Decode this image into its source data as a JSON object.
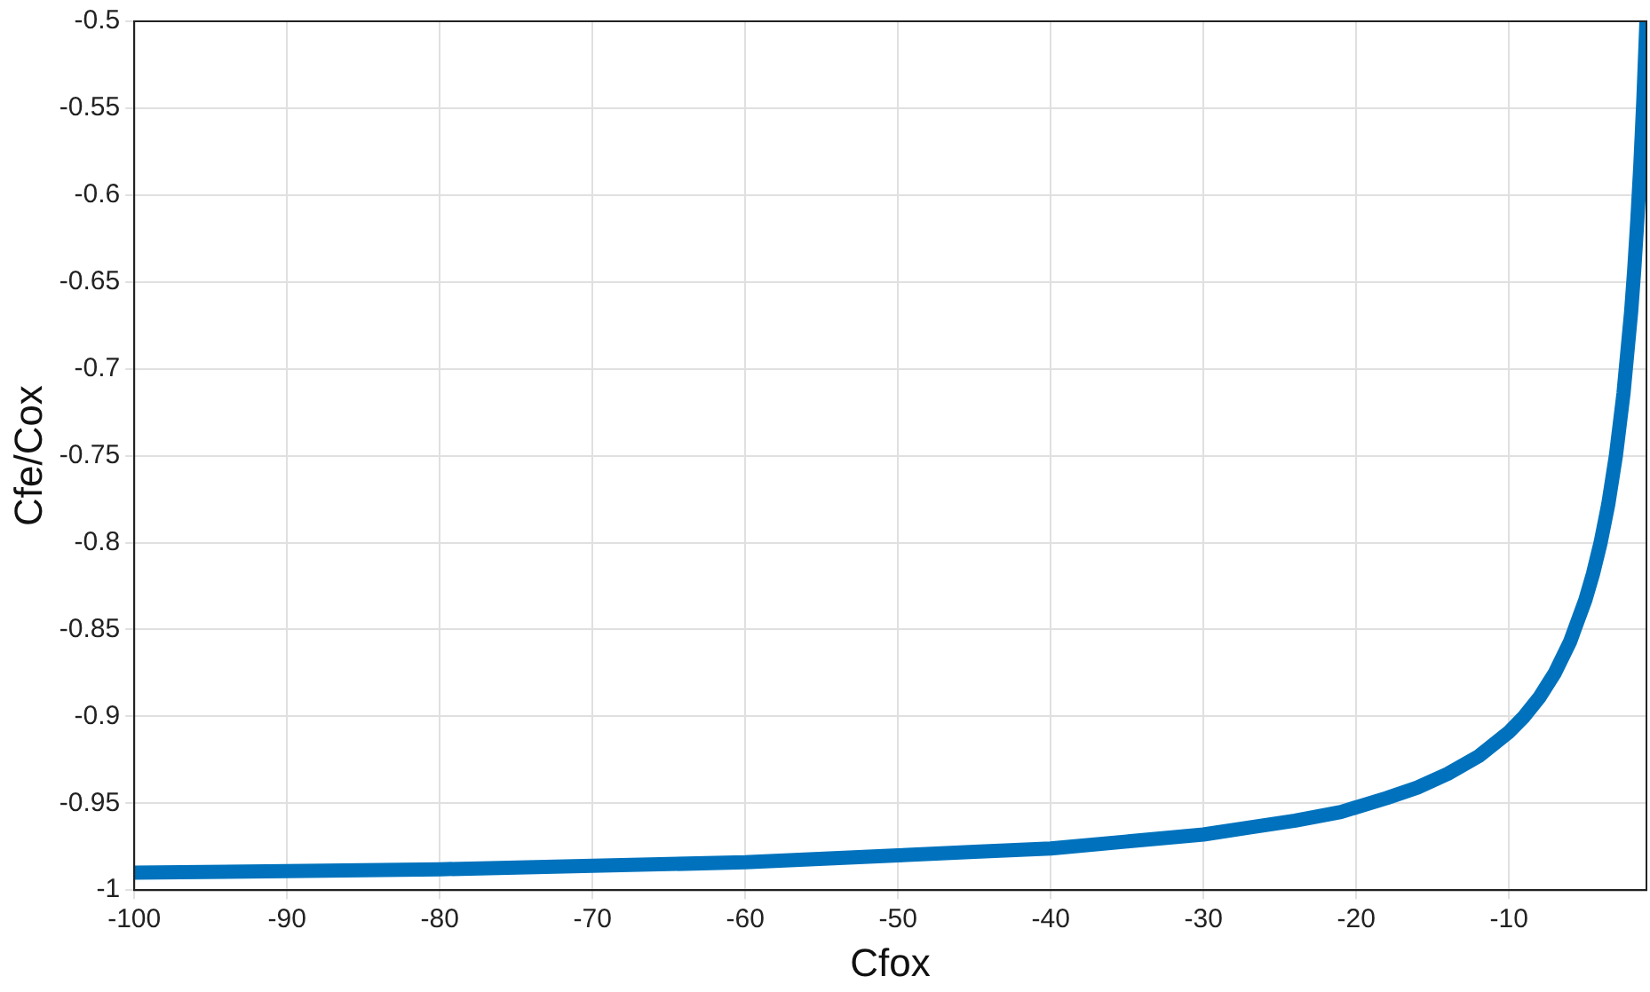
{
  "chart_data": {
    "type": "line",
    "xlabel": "Cfox",
    "ylabel": "Cfe/Cox",
    "x": [
      -100,
      -90,
      -80,
      -70,
      -60,
      -50,
      -45,
      -40,
      -35,
      -30,
      -27,
      -24,
      -21,
      -18,
      -16,
      -14,
      -12,
      -10,
      -9,
      -8,
      -7,
      -6,
      -5,
      -4.5,
      -4,
      -3.5,
      -3,
      -2.5,
      -2,
      -1.8,
      -1.6,
      -1.4,
      -1.2,
      -1
    ],
    "series": [
      {
        "color": "#0072bd",
        "values": [
          -0.99,
          -0.989,
          -0.988,
          -0.986,
          -0.984,
          -0.98,
          -0.978,
          -0.976,
          -0.972,
          -0.968,
          -0.964,
          -0.96,
          -0.955,
          -0.947,
          -0.941,
          -0.933,
          -0.923,
          -0.909,
          -0.9,
          -0.889,
          -0.875,
          -0.857,
          -0.833,
          -0.818,
          -0.8,
          -0.778,
          -0.75,
          -0.714,
          -0.667,
          -0.643,
          -0.615,
          -0.583,
          -0.545,
          -0.5
        ]
      }
    ],
    "xlim": [
      -100,
      -1
    ],
    "xticks": [
      -100,
      -90,
      -80,
      -70,
      -60,
      -50,
      -40,
      -30,
      -20,
      -10
    ],
    "ylim": [
      -1,
      -0.5
    ],
    "yticks": [
      -1,
      -0.95,
      -0.9,
      -0.85,
      -0.8,
      -0.75,
      -0.7,
      -0.65,
      -0.6,
      -0.55,
      -0.5
    ],
    "grid": true,
    "marker": "none",
    "line_style": "solid"
  }
}
